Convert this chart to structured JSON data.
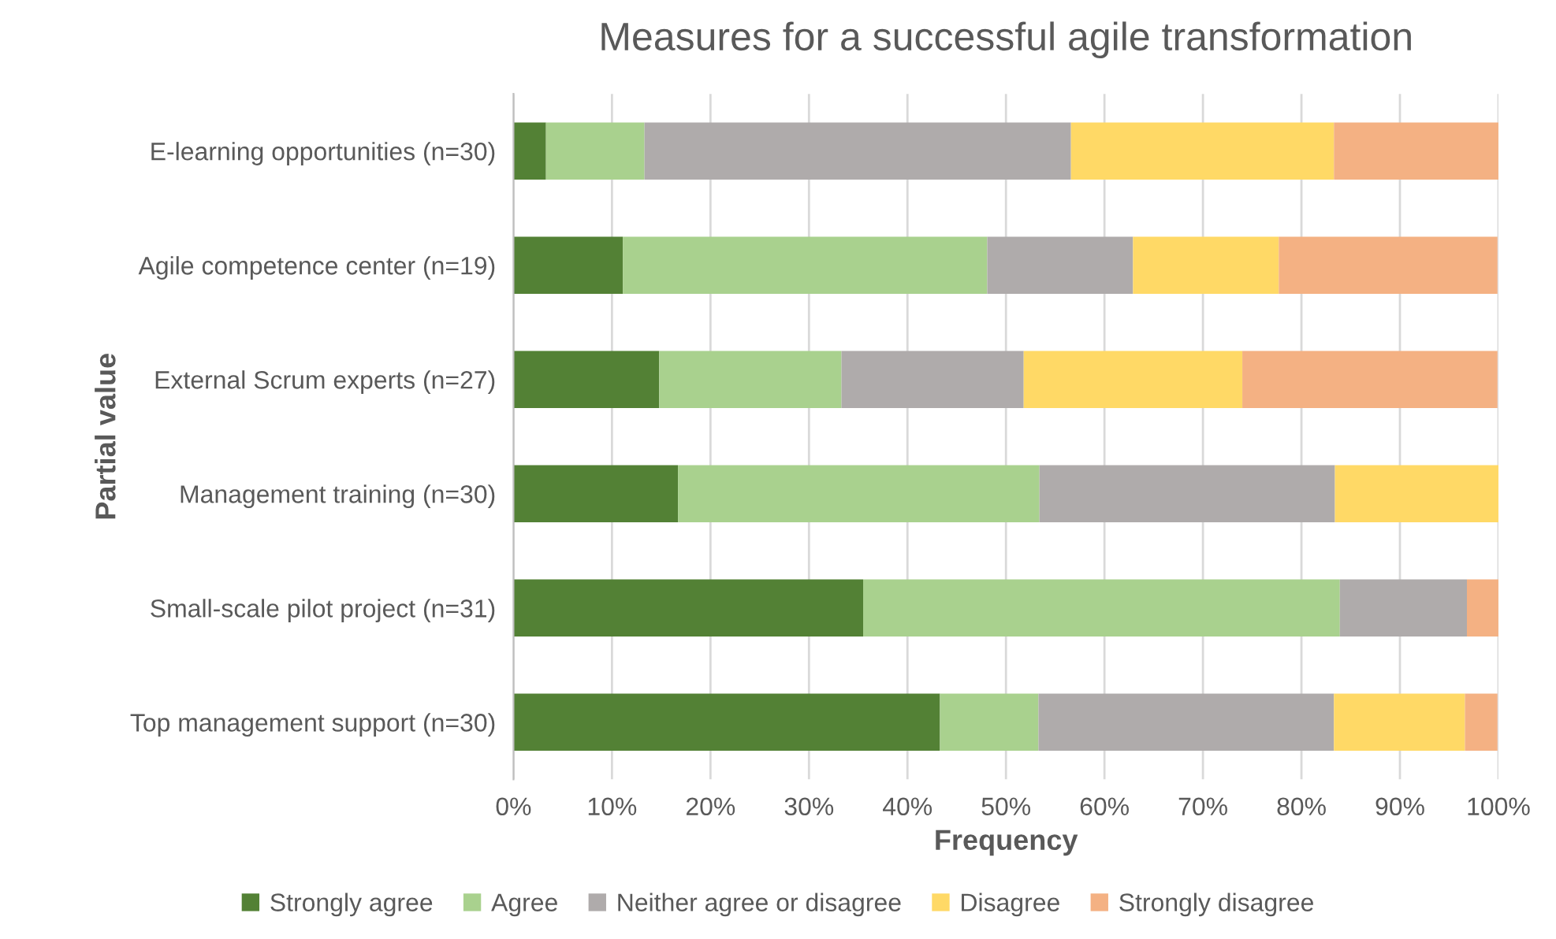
{
  "chart_data": {
    "type": "bar",
    "orientation": "horizontal",
    "stacked": true,
    "title": "Measures for a successful agile transformation",
    "xlabel": "Frequency",
    "ylabel": "Partial value",
    "categories": [
      "E-learning opportunities (n=30)",
      "Agile competence center (n=19)",
      "External Scrum experts (n=27)",
      "Management training (n=30)",
      "Small-scale pilot project (n=31)",
      "Top management support (n=30)"
    ],
    "series": [
      {
        "name": "Strongly agree",
        "color": "#538135",
        "values": [
          3.3,
          11.1,
          14.8,
          16.7,
          35.5,
          43.3
        ]
      },
      {
        "name": "Agree",
        "color": "#a9d18e",
        "values": [
          10.0,
          37.0,
          18.5,
          36.7,
          48.4,
          10.0
        ]
      },
      {
        "name": "Neither agree or disagree",
        "color": "#afabab",
        "values": [
          43.3,
          14.8,
          18.5,
          30.0,
          12.9,
          30.0
        ]
      },
      {
        "name": "Disagree",
        "color": "#ffd966",
        "values": [
          26.7,
          14.8,
          22.2,
          16.7,
          0,
          13.3
        ]
      },
      {
        "name": "Strongly disagree",
        "color": "#f4b183",
        "values": [
          16.7,
          22.2,
          25.9,
          0,
          3.2,
          3.3
        ]
      }
    ],
    "xlim": [
      0,
      100
    ],
    "xticks": [
      {
        "value": 0,
        "label": "0%"
      },
      {
        "value": 10,
        "label": "10%"
      },
      {
        "value": 20,
        "label": "20%"
      },
      {
        "value": 30,
        "label": "30%"
      },
      {
        "value": 40,
        "label": "40%"
      },
      {
        "value": 50,
        "label": "50%"
      },
      {
        "value": 60,
        "label": "60%"
      },
      {
        "value": 70,
        "label": "70%"
      },
      {
        "value": 80,
        "label": "80%"
      },
      {
        "value": 90,
        "label": "90%"
      },
      {
        "value": 100,
        "label": "100%"
      }
    ],
    "grid": "x",
    "legend": "bottom"
  }
}
